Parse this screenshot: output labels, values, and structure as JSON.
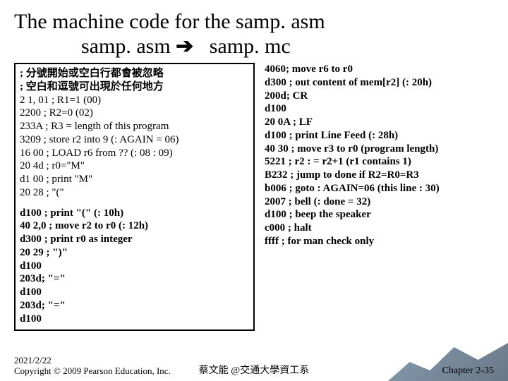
{
  "title": {
    "line1": "The machine code for the samp. asm",
    "line2_a": "samp. asm",
    "arrow": "➔",
    "line2_b": "samp. mc"
  },
  "left": {
    "cjk1": "; 分號開始或空白行都會被忽略",
    "cjk2": "; 空白和逗號可出現於任何地方",
    "l1": "2 1, 01  ; R1=1  (00)",
    "l2": "2200   ; R2=0   (02)",
    "l3": "233A   ; R3 = length of this program",
    "l4": "3209   ; store r2 into 9 (: AGAIN = 06)",
    "l5": "16 00  ; LOAD r6 from ?? (: 08 : 09)",
    "l6": "20 4d  ; r0=\"M\"",
    "l7": "d1 00  ; print \"M\"",
    "l8": "20 28  ; \"(\"",
    "l9": "d100  ; print \"(\"   (: 10h)",
    "l10": "40 2,0  ; move r2 to r0   (: 12h)",
    "l11": "d300  ; print r0 as integer",
    "l12": "20 29 ; \")\"",
    "l13": "d100",
    "l14": "203d; \"=\"",
    "l15": "d100",
    "l16": "203d; \"=\"",
    "l17": "d100"
  },
  "right": {
    "r1": "4060; move r6 to r0",
    "r2": "d300 ; out content of mem[r2] (: 20h)",
    "r3": "200d; CR",
    "r4": "d100",
    "r5": "20 0A ; LF",
    "r6": "d100  ; print Line Feed   (: 28h)",
    "r7": "40 30 ; move r3 to r0 (program length)",
    "r8": "5221  ; r2 : = r2+1 (r1 contains 1)",
    "r9": "B232  ; jump to done if R2=R0=R3",
    "r10": "b006  ; goto : AGAIN=06  (this line : 30)",
    "r11": "2007  ; bell (: done = 32)",
    "r12": "d100  ; beep the speaker",
    "r13": "c000  ; halt",
    "r14": "ffff  ; for man check only"
  },
  "footer": {
    "date": "2021/2/22",
    "copyright": "Copyright © 2009 Pearson Education, Inc.",
    "center": "蔡文能 @交通大學資工系",
    "right": "Chapter 2-35"
  }
}
